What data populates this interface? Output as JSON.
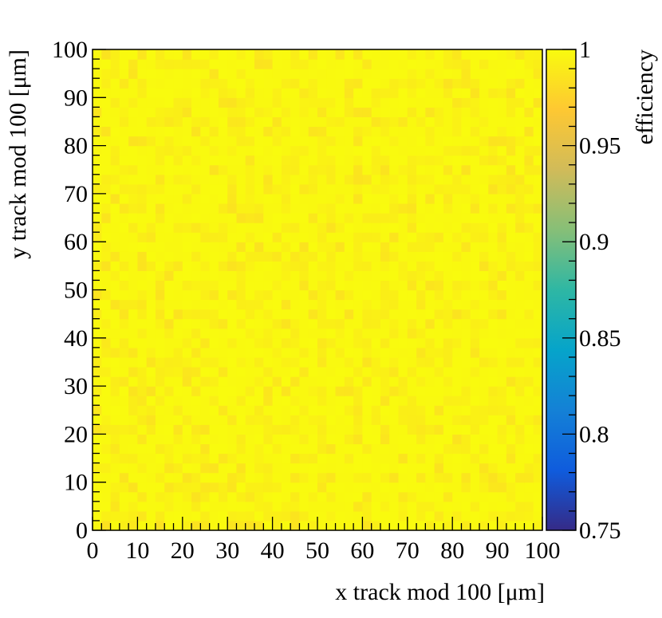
{
  "chart_data": {
    "type": "heatmap",
    "title": "",
    "xlabel": "x track mod 100 [μm]",
    "ylabel": "y track mod 100 [μm]",
    "zlabel": "efficiency",
    "xlim": [
      0,
      100
    ],
    "ylim": [
      0,
      100
    ],
    "zlim": [
      0.75,
      1
    ],
    "x_ticks": [
      "0",
      "10",
      "20",
      "30",
      "40",
      "50",
      "60",
      "70",
      "80",
      "90",
      "100"
    ],
    "y_ticks": [
      "0",
      "10",
      "20",
      "30",
      "40",
      "50",
      "60",
      "70",
      "80",
      "90",
      "100"
    ],
    "z_ticks": [
      "0.75",
      "0.8",
      "0.85",
      "0.9",
      "0.95",
      "1"
    ],
    "bins_x": 50,
    "bins_y": 50,
    "bin_width_um": 2,
    "efficiency_typical": 0.995,
    "efficiency_range": [
      0.985,
      1.0
    ],
    "colormap": [
      "#352a87",
      "#0f5cdd",
      "#1481d6",
      "#06a4ca",
      "#2eb7a4",
      "#87bf77",
      "#d1bb59",
      "#fec832",
      "#f9fb0e"
    ],
    "grid": false,
    "legend": "colorbar-right"
  }
}
